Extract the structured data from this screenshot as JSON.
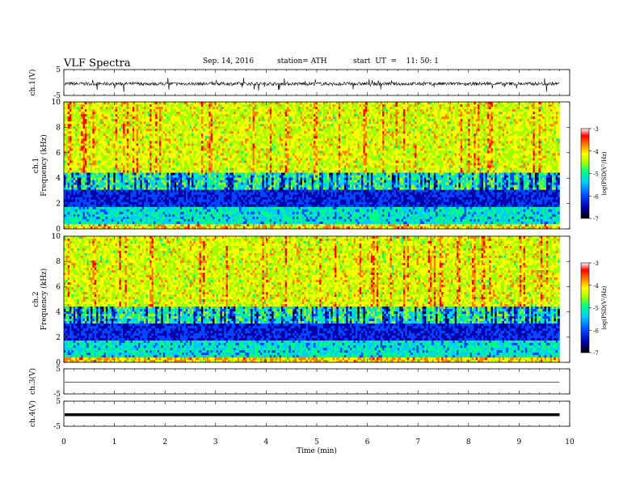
{
  "header": {
    "title": "VLF  Spectra",
    "date": "Sep. 14, 2016",
    "station": "station= ATH",
    "start": "start  UT  =    11: 50: 1"
  },
  "chart_data": {
    "type": "heatmap",
    "xlabel": "Time  (min)",
    "xlim": [
      0,
      10
    ],
    "x_ticks": [
      "0",
      "1",
      "2",
      "3",
      "4",
      "5",
      "6",
      "7",
      "8",
      "9",
      "10"
    ],
    "panels": [
      {
        "id": "ch1-waveform",
        "type": "line",
        "ylabel": "ch.1(V)",
        "ylim": [
          -5,
          5
        ],
        "y_ticks": [
          "5",
          "-5"
        ],
        "trace": "noise around 0, spikes"
      },
      {
        "id": "ch1-spectrogram",
        "type": "heatmap",
        "ylabel_top": "ch.1",
        "ylabel": "Frequency  (kHz)",
        "ylim": [
          0,
          10
        ],
        "y_ticks": [
          "0",
          "2",
          "4",
          "6",
          "8",
          "10"
        ],
        "colorbar": {
          "label": "log(PSD(V²/Hz)",
          "range": [
            -7,
            -3
          ],
          "ticks": [
            "-3",
            "-4",
            "-5",
            "-6",
            "-7"
          ]
        }
      },
      {
        "id": "ch2-spectrogram",
        "type": "heatmap",
        "ylabel_top": "ch.2",
        "ylabel": "Frequency  (kHz)",
        "ylim": [
          0,
          10
        ],
        "y_ticks": [
          "0",
          "2",
          "4",
          "6",
          "8",
          "10"
        ],
        "colorbar": {
          "label": "log(PSD(V²/Hz)",
          "range": [
            -7,
            -3
          ],
          "ticks": [
            "-3",
            "-4",
            "-5",
            "-6",
            "-7"
          ]
        }
      },
      {
        "id": "ch3-waveform",
        "type": "line",
        "ylabel": "ch.3(V)",
        "ylim": [
          -5,
          5
        ],
        "y_ticks": [
          "5",
          "-5"
        ],
        "trace": "flat near 0"
      },
      {
        "id": "ch4-waveform",
        "type": "line",
        "ylabel": "ch.4(V)",
        "ylim": [
          -5,
          5
        ],
        "y_ticks": [
          "5",
          "-5"
        ],
        "trace": "thick flat line near 0"
      }
    ],
    "data_end_min": 9.8
  },
  "colors": {
    "colormap": [
      "#000000",
      "#0000aa",
      "#0044ff",
      "#00ccff",
      "#00ff80",
      "#a0ff00",
      "#ffff00",
      "#ff8000",
      "#ff0000",
      "#ffffff"
    ]
  }
}
